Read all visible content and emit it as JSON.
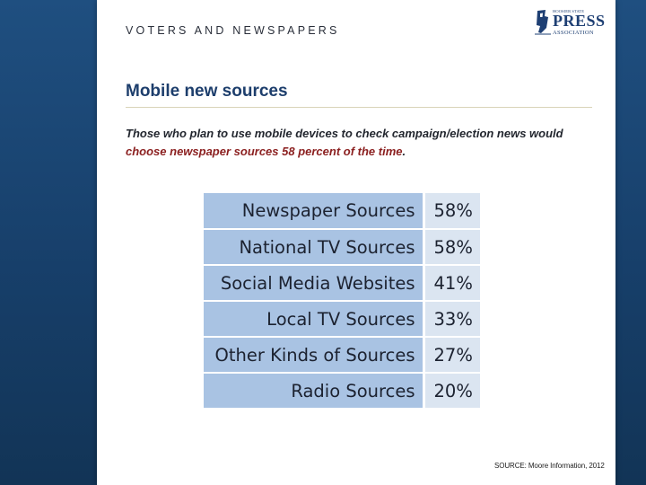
{
  "slide": {
    "section_title": "VOTERS AND NEWSPAPERS",
    "logo": {
      "top_text": "HOOSIER STATE",
      "press_text": "PRESS",
      "assoc_text": "ASSOCIATION"
    },
    "heading": "Mobile new sources",
    "caption": {
      "part1": "Those who plan to use mobile devices to check campaign/election news would ",
      "highlight": "choose newspaper sources 58 percent of the time",
      "part2": "."
    },
    "rows": [
      {
        "label": "Newspaper Sources",
        "value": "58%"
      },
      {
        "label": "National TV Sources",
        "value": "58%"
      },
      {
        "label": "Social Media Websites",
        "value": "41%"
      },
      {
        "label": "Local TV Sources",
        "value": "33%"
      },
      {
        "label": "Other Kinds of Sources",
        "value": "27%"
      },
      {
        "label": "Radio Sources",
        "value": "20%"
      }
    ],
    "source": "SOURCE: Moore Information, 2012"
  },
  "colors": {
    "label_cell": "#a9c3e3",
    "value_cell": "#dbe5f1",
    "heading": "#1d3e6c",
    "highlight": "#8b1f1f",
    "side_panel": "#1f4f80"
  }
}
